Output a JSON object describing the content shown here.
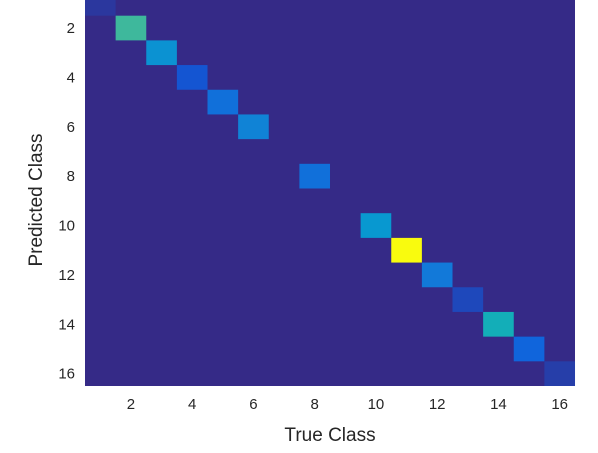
{
  "chart_data": {
    "type": "heatmap",
    "xlabel": "True Class",
    "ylabel": "Predicted Class",
    "x_range": [
      1,
      16
    ],
    "y_range": [
      1,
      16
    ],
    "x_ticks": [
      2,
      4,
      6,
      8,
      10,
      12,
      14,
      16
    ],
    "y_ticks": [
      2,
      4,
      6,
      8,
      10,
      12,
      14,
      16
    ],
    "background_value": 0,
    "value_range": [
      0,
      1
    ],
    "colormap": "parula",
    "cells": [
      {
        "x": 1,
        "y": 1,
        "v": 0.04
      },
      {
        "x": 2,
        "y": 2,
        "v": 0.66
      },
      {
        "x": 3,
        "y": 3,
        "v": 0.4
      },
      {
        "x": 4,
        "y": 4,
        "v": 0.13
      },
      {
        "x": 5,
        "y": 5,
        "v": 0.24
      },
      {
        "x": 6,
        "y": 6,
        "v": 0.33
      },
      {
        "x": 8,
        "y": 8,
        "v": 0.24
      },
      {
        "x": 10,
        "y": 10,
        "v": 0.43
      },
      {
        "x": 11,
        "y": 11,
        "v": 1.0
      },
      {
        "x": 12,
        "y": 12,
        "v": 0.28
      },
      {
        "x": 13,
        "y": 13,
        "v": 0.09
      },
      {
        "x": 14,
        "y": 14,
        "v": 0.58
      },
      {
        "x": 15,
        "y": 15,
        "v": 0.19
      },
      {
        "x": 16,
        "y": 16,
        "v": 0.06
      }
    ]
  }
}
